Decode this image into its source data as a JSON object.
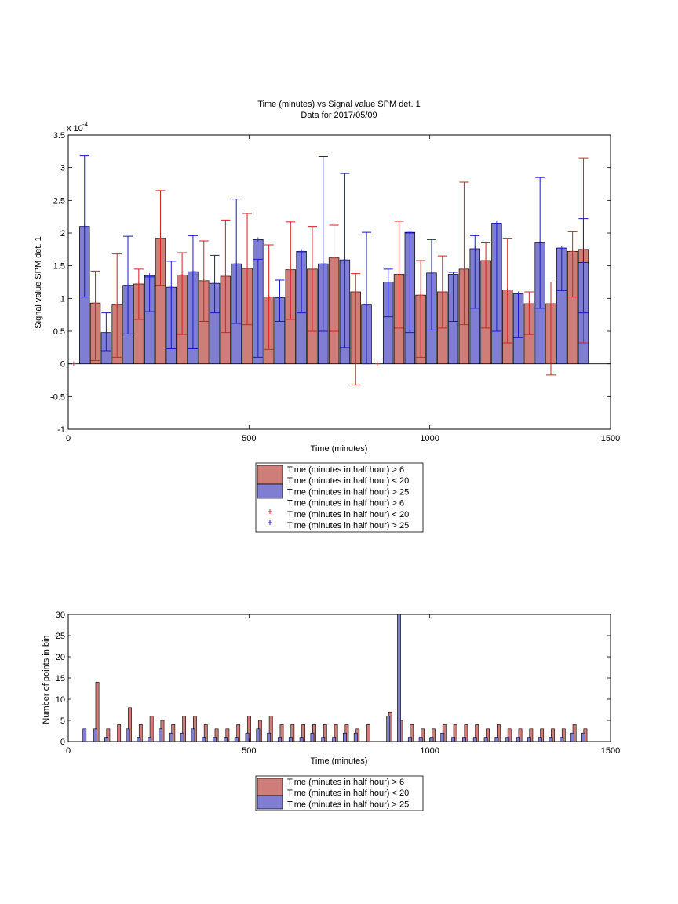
{
  "chart_data": [
    {
      "type": "bar",
      "title": [
        "Time (minutes) vs Signal value SPM det. 1",
        "Data for 2017/05/09"
      ],
      "xlabel": "Time (minutes)",
      "ylabel": "Signal value SPM det. 1",
      "y_multiplier_label": "x 10",
      "y_multiplier_exponent": "-4",
      "xlim": [
        0,
        1500
      ],
      "ylim": [
        -1,
        3.5
      ],
      "xticks": [
        "0",
        "500",
        "1000",
        "1500"
      ],
      "yticks": [
        "-1",
        "-0.5",
        "0",
        "0.5",
        "1",
        "1.5",
        "2",
        "2.5",
        "3",
        "3.5"
      ],
      "grid": false,
      "legend_position": "below",
      "legend": [
        "Time (minutes in half hour) > 6",
        "Time (minutes in half hour) < 20",
        "Time (minutes in half hour) > 25",
        "Time (minutes in half hour) > 6",
        "Time (minutes in half hour) < 20",
        "Time (minutes in half hour) > 25"
      ],
      "colors": {
        "red_bar": "#cf7d79",
        "blue_bar": "#7f7ed2",
        "red_err": "#d42020",
        "blue_err": "#1a1acc"
      },
      "series": [
        {
          "legend_index": 0,
          "x": [
            15,
            75,
            135,
            195,
            255,
            315,
            375,
            435,
            495,
            555,
            615,
            675,
            735,
            795,
            855,
            915,
            975,
            1035,
            1095,
            1155,
            1215,
            1275,
            1335,
            1395,
            1425
          ],
          "values": [
            0,
            0.93,
            0.9,
            1.22,
            1.92,
            1.36,
            1.27,
            1.34,
            1.46,
            1.02,
            1.44,
            1.45,
            1.62,
            1.1,
            0,
            1.37,
            1.05,
            1.1,
            1.45,
            1.58,
            1.13,
            0.92,
            0.92,
            1.72,
            1.75
          ],
          "err_low": [
            0,
            0.05,
            0.1,
            0.68,
            1.2,
            0.45,
            0.65,
            0.48,
            0.6,
            0.22,
            0.68,
            0.5,
            0.5,
            -0.32,
            0,
            0.55,
            0.1,
            0.55,
            0.6,
            0.55,
            0.32,
            0.45,
            -0.17,
            1.02,
            0.32
          ],
          "err_high": [
            0,
            1.42,
            1.68,
            1.45,
            2.65,
            1.7,
            1.88,
            2.2,
            2.3,
            1.82,
            2.17,
            2.1,
            2.12,
            1.38,
            0,
            2.18,
            1.58,
            1.65,
            2.78,
            1.85,
            1.92,
            1.1,
            1.25,
            2.02,
            3.15
          ]
        },
        {
          "legend_index": 2,
          "x": [
            45,
            105,
            165,
            225,
            285,
            345,
            405,
            465,
            525,
            585,
            645,
            705,
            765,
            825,
            885,
            945,
            1005,
            1065,
            1125,
            1185,
            1245,
            1305,
            1365,
            1425
          ],
          "values": [
            2.1,
            0.48,
            1.2,
            1.35,
            1.17,
            1.41,
            1.23,
            1.53,
            1.9,
            1.01,
            1.72,
            1.53,
            1.59,
            0.9,
            1.25,
            2.01,
            1.39,
            1.37,
            1.76,
            2.15,
            1.07,
            1.85,
            1.77,
            1.55
          ],
          "err_low": [
            1.02,
            0.2,
            0.46,
            0.8,
            0.23,
            0.23,
            0.78,
            0.62,
            0.1,
            0.65,
            0.78,
            0.5,
            0.25,
            0.0,
            0.72,
            0.48,
            0.52,
            0.65,
            0.85,
            0.5,
            0.4,
            0.85,
            1.12,
            0.78
          ],
          "err_high": [
            3.18,
            0.78,
            1.95,
            1.33,
            1.57,
            1.96,
            1.66,
            2.52,
            1.6,
            1.28,
            1.7,
            3.17,
            2.91,
            2.01,
            1.45,
            2.0,
            1.9,
            1.4,
            1.96,
            2.15,
            1.08,
            2.85,
            1.77,
            2.22
          ]
        }
      ]
    },
    {
      "type": "bar",
      "xlabel": "Time (minutes)",
      "ylabel": "Number of points in bin",
      "xlim": [
        0,
        1500
      ],
      "ylim": [
        0,
        30
      ],
      "xticks": [
        "0",
        "500",
        "1000",
        "1500"
      ],
      "yticks": [
        "0",
        "5",
        "10",
        "15",
        "20",
        "25",
        "30"
      ],
      "grid": false,
      "legend_position": "below",
      "legend": [
        "Time (minutes in half hour) > 6",
        "Time (minutes in half hour) < 20",
        "Time (minutes in half hour) > 25"
      ],
      "series": [
        {
          "legend_index": 0,
          "x": [
            15,
            75,
            105,
            135,
            165,
            195,
            225,
            255,
            285,
            315,
            345,
            375,
            405,
            435,
            465,
            495,
            525,
            555,
            585,
            615,
            645,
            675,
            705,
            735,
            765,
            795,
            825,
            855,
            885,
            915,
            945,
            975,
            1005,
            1035,
            1065,
            1095,
            1125,
            1155,
            1185,
            1215,
            1245,
            1275,
            1305,
            1335,
            1365,
            1395,
            1425
          ],
          "values": [
            0,
            14,
            3,
            4,
            8,
            4,
            6,
            5,
            4,
            6,
            6,
            4,
            3,
            3,
            4,
            6,
            5,
            6,
            4,
            4,
            4,
            4,
            4,
            4,
            4,
            3,
            4,
            0,
            7,
            5,
            4,
            3,
            3,
            4,
            4,
            4,
            4,
            3,
            4,
            3,
            3,
            3,
            3,
            3,
            3,
            4,
            3
          ]
        },
        {
          "legend_index": 2,
          "x": [
            45,
            75,
            105,
            165,
            195,
            225,
            255,
            285,
            315,
            345,
            375,
            405,
            435,
            465,
            495,
            525,
            555,
            585,
            615,
            645,
            675,
            705,
            735,
            765,
            795,
            825,
            855,
            885,
            915,
            945,
            975,
            1005,
            1035,
            1065,
            1095,
            1125,
            1155,
            1185,
            1215,
            1245,
            1275,
            1305,
            1335,
            1365,
            1395,
            1425
          ],
          "values": [
            3,
            3,
            1,
            3,
            1,
            1,
            3,
            2,
            2,
            3,
            1,
            1,
            1,
            1,
            2,
            3,
            2,
            1,
            1,
            1,
            2,
            1,
            1,
            2,
            2,
            0,
            0,
            6,
            30,
            1,
            1,
            1,
            2,
            1,
            1,
            1,
            1,
            1,
            1,
            1,
            1,
            1,
            1,
            1,
            2,
            2
          ]
        }
      ]
    }
  ]
}
